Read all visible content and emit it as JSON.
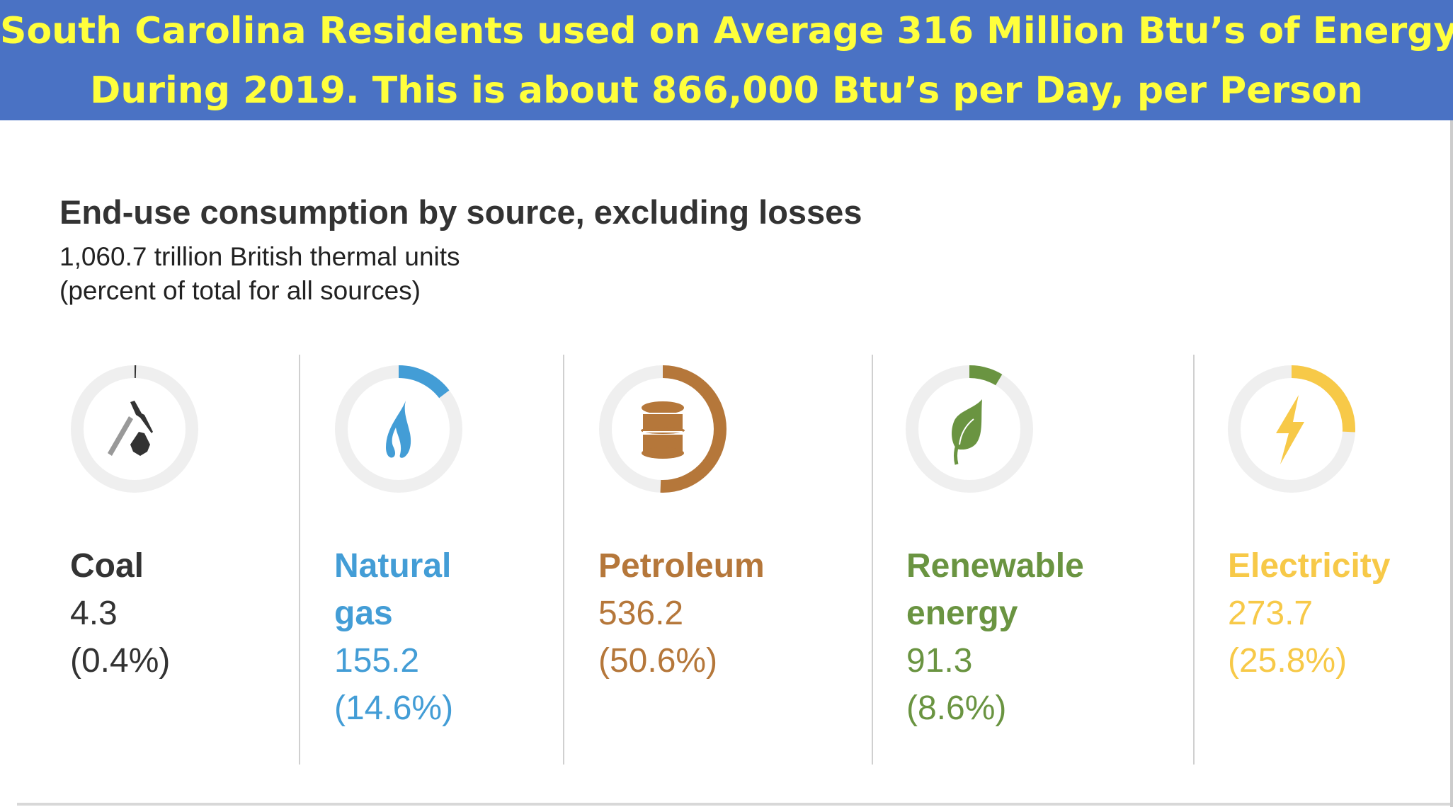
{
  "banner": {
    "line1": "South Carolina Residents used on Average 316 Million Btu’s of Energy",
    "line2": "During 2019. This is about 866,000 Btu’s per Day, per Person"
  },
  "chart_data": {
    "type": "donut",
    "title": "End-use consumption by source, excluding losses",
    "subtitle_total": "1,060.7 trillion British thermal units",
    "subtitle_note": "(percent of total for all sources)",
    "unit": "trillion Btu",
    "sources": [
      {
        "name_line1": "Coal",
        "name_line2": "",
        "value": 4.3,
        "value_label": "4.3",
        "percent": 0.4,
        "percent_label": "(0.4%)",
        "color": "#333333",
        "icon": "pickaxe-coal-icon"
      },
      {
        "name_line1": "Natural",
        "name_line2": "gas",
        "value": 155.2,
        "value_label": "155.2",
        "percent": 14.6,
        "percent_label": "(14.6%)",
        "color": "#439dd6",
        "icon": "flame-icon"
      },
      {
        "name_line1": "Petroleum",
        "name_line2": "",
        "value": 536.2,
        "value_label": "536.2",
        "percent": 50.6,
        "percent_label": "(50.6%)",
        "color": "#b5773a",
        "icon": "oil-barrel-icon"
      },
      {
        "name_line1": "Renewable",
        "name_line2": "energy",
        "value": 91.3,
        "value_label": "91.3",
        "percent": 8.6,
        "percent_label": "(8.6%)",
        "color": "#6a9441",
        "icon": "leaf-icon"
      },
      {
        "name_line1": "Electricity",
        "name_line2": "",
        "value": 273.7,
        "value_label": "273.7",
        "percent": 25.8,
        "percent_label": "(25.8%)",
        "color": "#f7c948",
        "icon": "lightning-icon"
      }
    ]
  }
}
